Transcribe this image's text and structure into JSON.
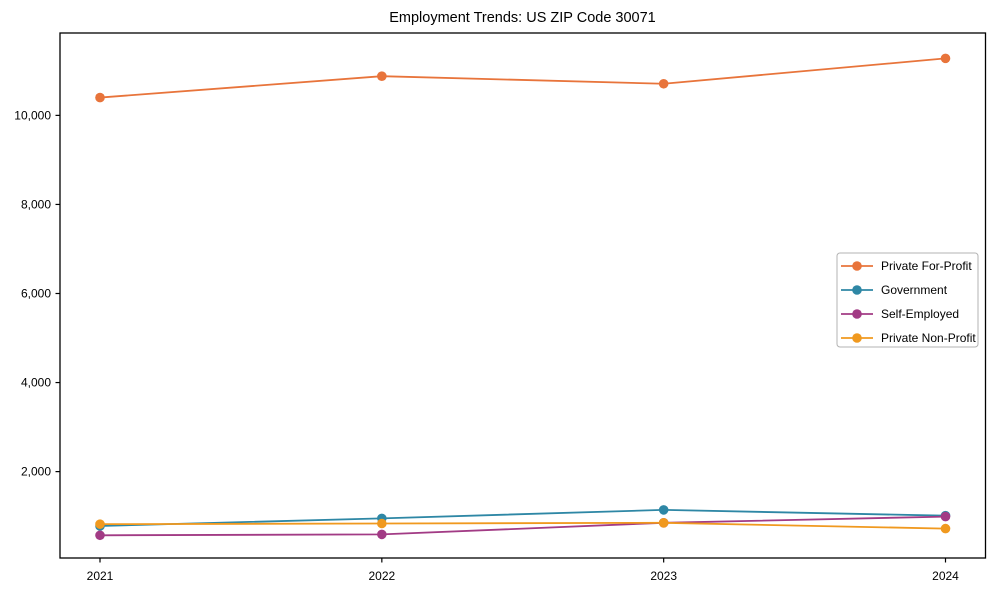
{
  "window": {
    "background": "#ffffff"
  },
  "chart_data": {
    "type": "line",
    "title": "Employment Trends: US ZIP Code 30071",
    "categories": [
      "2021",
      "2022",
      "2023",
      "2024"
    ],
    "series": [
      {
        "name": "Private For-Profit",
        "color": "#e8743b",
        "values": [
          10400,
          10880,
          10710,
          11280
        ]
      },
      {
        "name": "Government",
        "color": "#2e87a5",
        "values": [
          780,
          950,
          1140,
          1010
        ]
      },
      {
        "name": "Self-Employed",
        "color": "#a23b85",
        "values": [
          570,
          590,
          850,
          990
        ]
      },
      {
        "name": "Private Non-Profit",
        "color": "#f0991f",
        "values": [
          820,
          835,
          850,
          720
        ]
      }
    ],
    "xlabel": "",
    "ylabel": "",
    "ylim": [
      60,
      11850
    ],
    "yticks": [
      2000,
      4000,
      6000,
      8000,
      10000
    ],
    "ytick_labels": [
      "2,000",
      "4,000",
      "6,000",
      "8,000",
      "10,000"
    ],
    "grid": false,
    "legend_position": "center-right",
    "axis_color": "#000000",
    "legend_border_color": "#b3b3b3"
  }
}
